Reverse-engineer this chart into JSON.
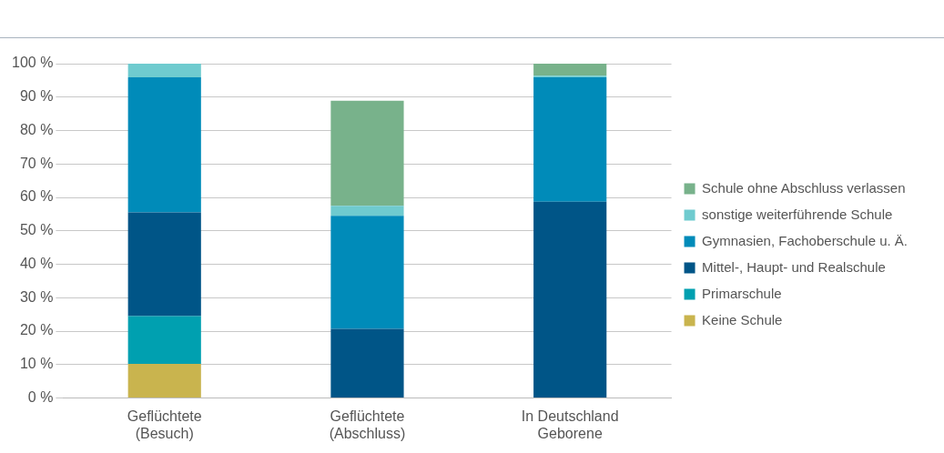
{
  "chart_data": {
    "type": "bar",
    "stacked": true,
    "categories": [
      "Geflüchtete\n(Besuch)",
      "Geflüchtete\n(Abschluss)",
      "In Deutschland\nGeborene"
    ],
    "series": [
      {
        "name": "Keine Schule",
        "color": "#c9b44e",
        "values": [
          10.2,
          null,
          null
        ]
      },
      {
        "name": "Primarschule",
        "color": "#00a0b0",
        "values": [
          14.3,
          null,
          null
        ]
      },
      {
        "name": "Mittel-, Haupt- und Realschule",
        "color": "#005587",
        "values": [
          31,
          20.7,
          58.7
        ]
      },
      {
        "name": "Gymnasien, Fachoberschule u. Ä.",
        "color": "#008bb9",
        "values": [
          40.4,
          33.8,
          37.2
        ]
      },
      {
        "name": "sonstige weiterführende Schule",
        "color": "#6fcbcf",
        "values": [
          4.1,
          3,
          0.5
        ]
      },
      {
        "name": "Schule ohne Abschluss verlassen",
        "color": "#78b28b",
        "values": [
          null,
          31.4,
          3.6
        ]
      }
    ],
    "ylim": [
      0,
      100
    ],
    "yticks": [
      {
        "value": 0,
        "label": "0 %"
      },
      {
        "value": 10,
        "label": "10 %"
      },
      {
        "value": 20,
        "label": "20 %"
      },
      {
        "value": 30,
        "label": "30 %"
      },
      {
        "value": 40,
        "label": "40 %"
      },
      {
        "value": 50,
        "label": "50 %"
      },
      {
        "value": 60,
        "label": "60 %"
      },
      {
        "value": 70,
        "label": "70 %"
      },
      {
        "value": 80,
        "label": "80 %"
      },
      {
        "value": 90,
        "label": "90 %"
      },
      {
        "value": 100,
        "label": "100 %"
      }
    ],
    "grid": "y",
    "legend": "right"
  }
}
